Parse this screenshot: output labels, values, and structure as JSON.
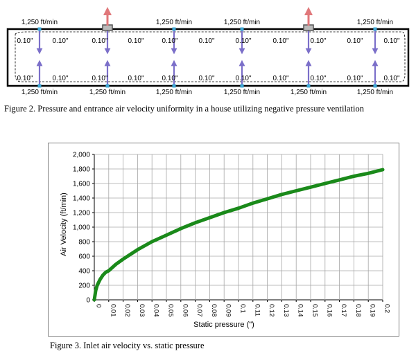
{
  "figure2": {
    "velocity_label": "1,250 ft/min",
    "pressure_label": "0.10\"",
    "caption": "Figure 2.  Pressure and entrance air velocity uniformity in a house utilizing negative pressure ventilation",
    "colors": {
      "inlet_arrow": "#7b6fc9",
      "exhaust_arrow": "#e0777a",
      "inlet_marker": "#3fa9d6",
      "fan": "#555555"
    }
  },
  "figure3": {
    "caption": "Figure 3.  Inlet air velocity vs. static pressure"
  },
  "chart_data": {
    "type": "line",
    "title": "",
    "xlabel": "Static pressure (\")",
    "ylabel": "Air Velocity (ft/min)",
    "xlim": [
      0,
      0.2
    ],
    "ylim": [
      0,
      2000
    ],
    "x_ticks": [
      "0",
      "0.01",
      "0.02",
      "0.03",
      "0.04",
      "0.05",
      "0.06",
      "0.07",
      "0.08",
      "0.09",
      "0.1",
      "0.11",
      "0.12",
      "0.13",
      "0.14",
      "0.15",
      "0.16",
      "0.17",
      "0.18",
      "0.19",
      "0.2"
    ],
    "y_ticks": [
      "0",
      "200",
      "400",
      "600",
      "800",
      "1,000",
      "1,200",
      "1,400",
      "1,600",
      "1,800",
      "2,000"
    ],
    "grid": true,
    "line_color": "#1a8a1a",
    "x": [
      0,
      0.001,
      0.002,
      0.004,
      0.006,
      0.008,
      0.01,
      0.015,
      0.02,
      0.03,
      0.04,
      0.05,
      0.06,
      0.07,
      0.08,
      0.09,
      0.1,
      0.11,
      0.12,
      0.13,
      0.14,
      0.15,
      0.16,
      0.17,
      0.18,
      0.19,
      0.2
    ],
    "y": [
      0,
      130,
      200,
      280,
      340,
      380,
      400,
      490,
      560,
      690,
      800,
      890,
      980,
      1060,
      1130,
      1200,
      1260,
      1330,
      1390,
      1450,
      1500,
      1550,
      1600,
      1650,
      1700,
      1740,
      1790
    ]
  }
}
